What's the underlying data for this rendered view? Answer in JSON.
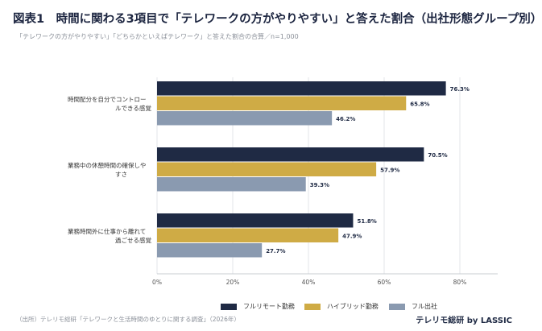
{
  "title": "図表1　時間に関わる3項目で「テレワークの方がやりやすい」と答えた割合（出社形態グループ別）",
  "subtitle": "「テレワークの方がやりやすい」「どちらかといえばテレワーク」と答えた割合の合算／n=1,000",
  "footer": {
    "source": "（出所）テレリモ総研「テレワークと生活時間のゆとりに関する調査」（2026年）",
    "brand": "テレリモ総研 by LASSIC"
  },
  "chart_data": {
    "type": "bar",
    "orientation": "horizontal",
    "categories": [
      [
        "時間配分を自分でコントロー",
        "ルできる感覚"
      ],
      [
        "業務中の休憩時間の確保しや",
        "すさ"
      ],
      [
        "業務時間外に仕事から離れて",
        "過ごせる感覚"
      ]
    ],
    "series": [
      {
        "name": "フルリモート勤務",
        "color": "#1f2a44",
        "values": [
          76.3,
          70.5,
          51.8
        ]
      },
      {
        "name": "ハイブリッド勤務",
        "color": "#cfab45",
        "values": [
          65.8,
          57.9,
          47.9
        ]
      },
      {
        "name": "フル出社",
        "color": "#8a9ab0",
        "values": [
          46.2,
          39.3,
          27.7
        ]
      }
    ],
    "value_labels": [
      [
        "76.3%",
        "65.8%",
        "46.2%"
      ],
      [
        "70.5%",
        "57.9%",
        "39.3%"
      ],
      [
        "51.8%",
        "47.9%",
        "27.7%"
      ]
    ],
    "xlim": [
      0,
      90
    ],
    "xticks": [
      0,
      20,
      40,
      60,
      80
    ],
    "xtick_labels": [
      "0%",
      "20%",
      "40%",
      "60%",
      "80%"
    ],
    "grid": "vertical",
    "legend": "bottom-center"
  }
}
